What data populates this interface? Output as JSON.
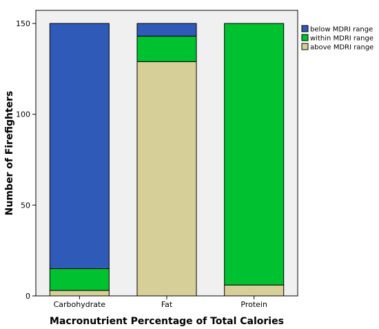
{
  "chart_data": {
    "type": "bar",
    "stacked": true,
    "xlabel": "Macronutrient Percentage of Total Calories",
    "ylabel": "Number of Firefighters",
    "categories": [
      "Carbohydrate",
      "Fat",
      "Protein"
    ],
    "ylim": [
      0,
      150
    ],
    "yticks": [
      0,
      50,
      100,
      150
    ],
    "grid": false,
    "legend_position": "top-right",
    "series": [
      {
        "name": "above MDRI range",
        "color": "#d6cf98",
        "values": [
          3,
          129,
          6
        ]
      },
      {
        "name": "within MDRI range",
        "color": "#00c230",
        "values": [
          12,
          14,
          144
        ]
      },
      {
        "name": "below MDRI range",
        "color": "#2f5ab8",
        "values": [
          135,
          7,
          0
        ]
      }
    ],
    "legend_order": [
      "below MDRI range",
      "within MDRI range",
      "above MDRI range"
    ],
    "plot_background": "#f0f0f0"
  }
}
